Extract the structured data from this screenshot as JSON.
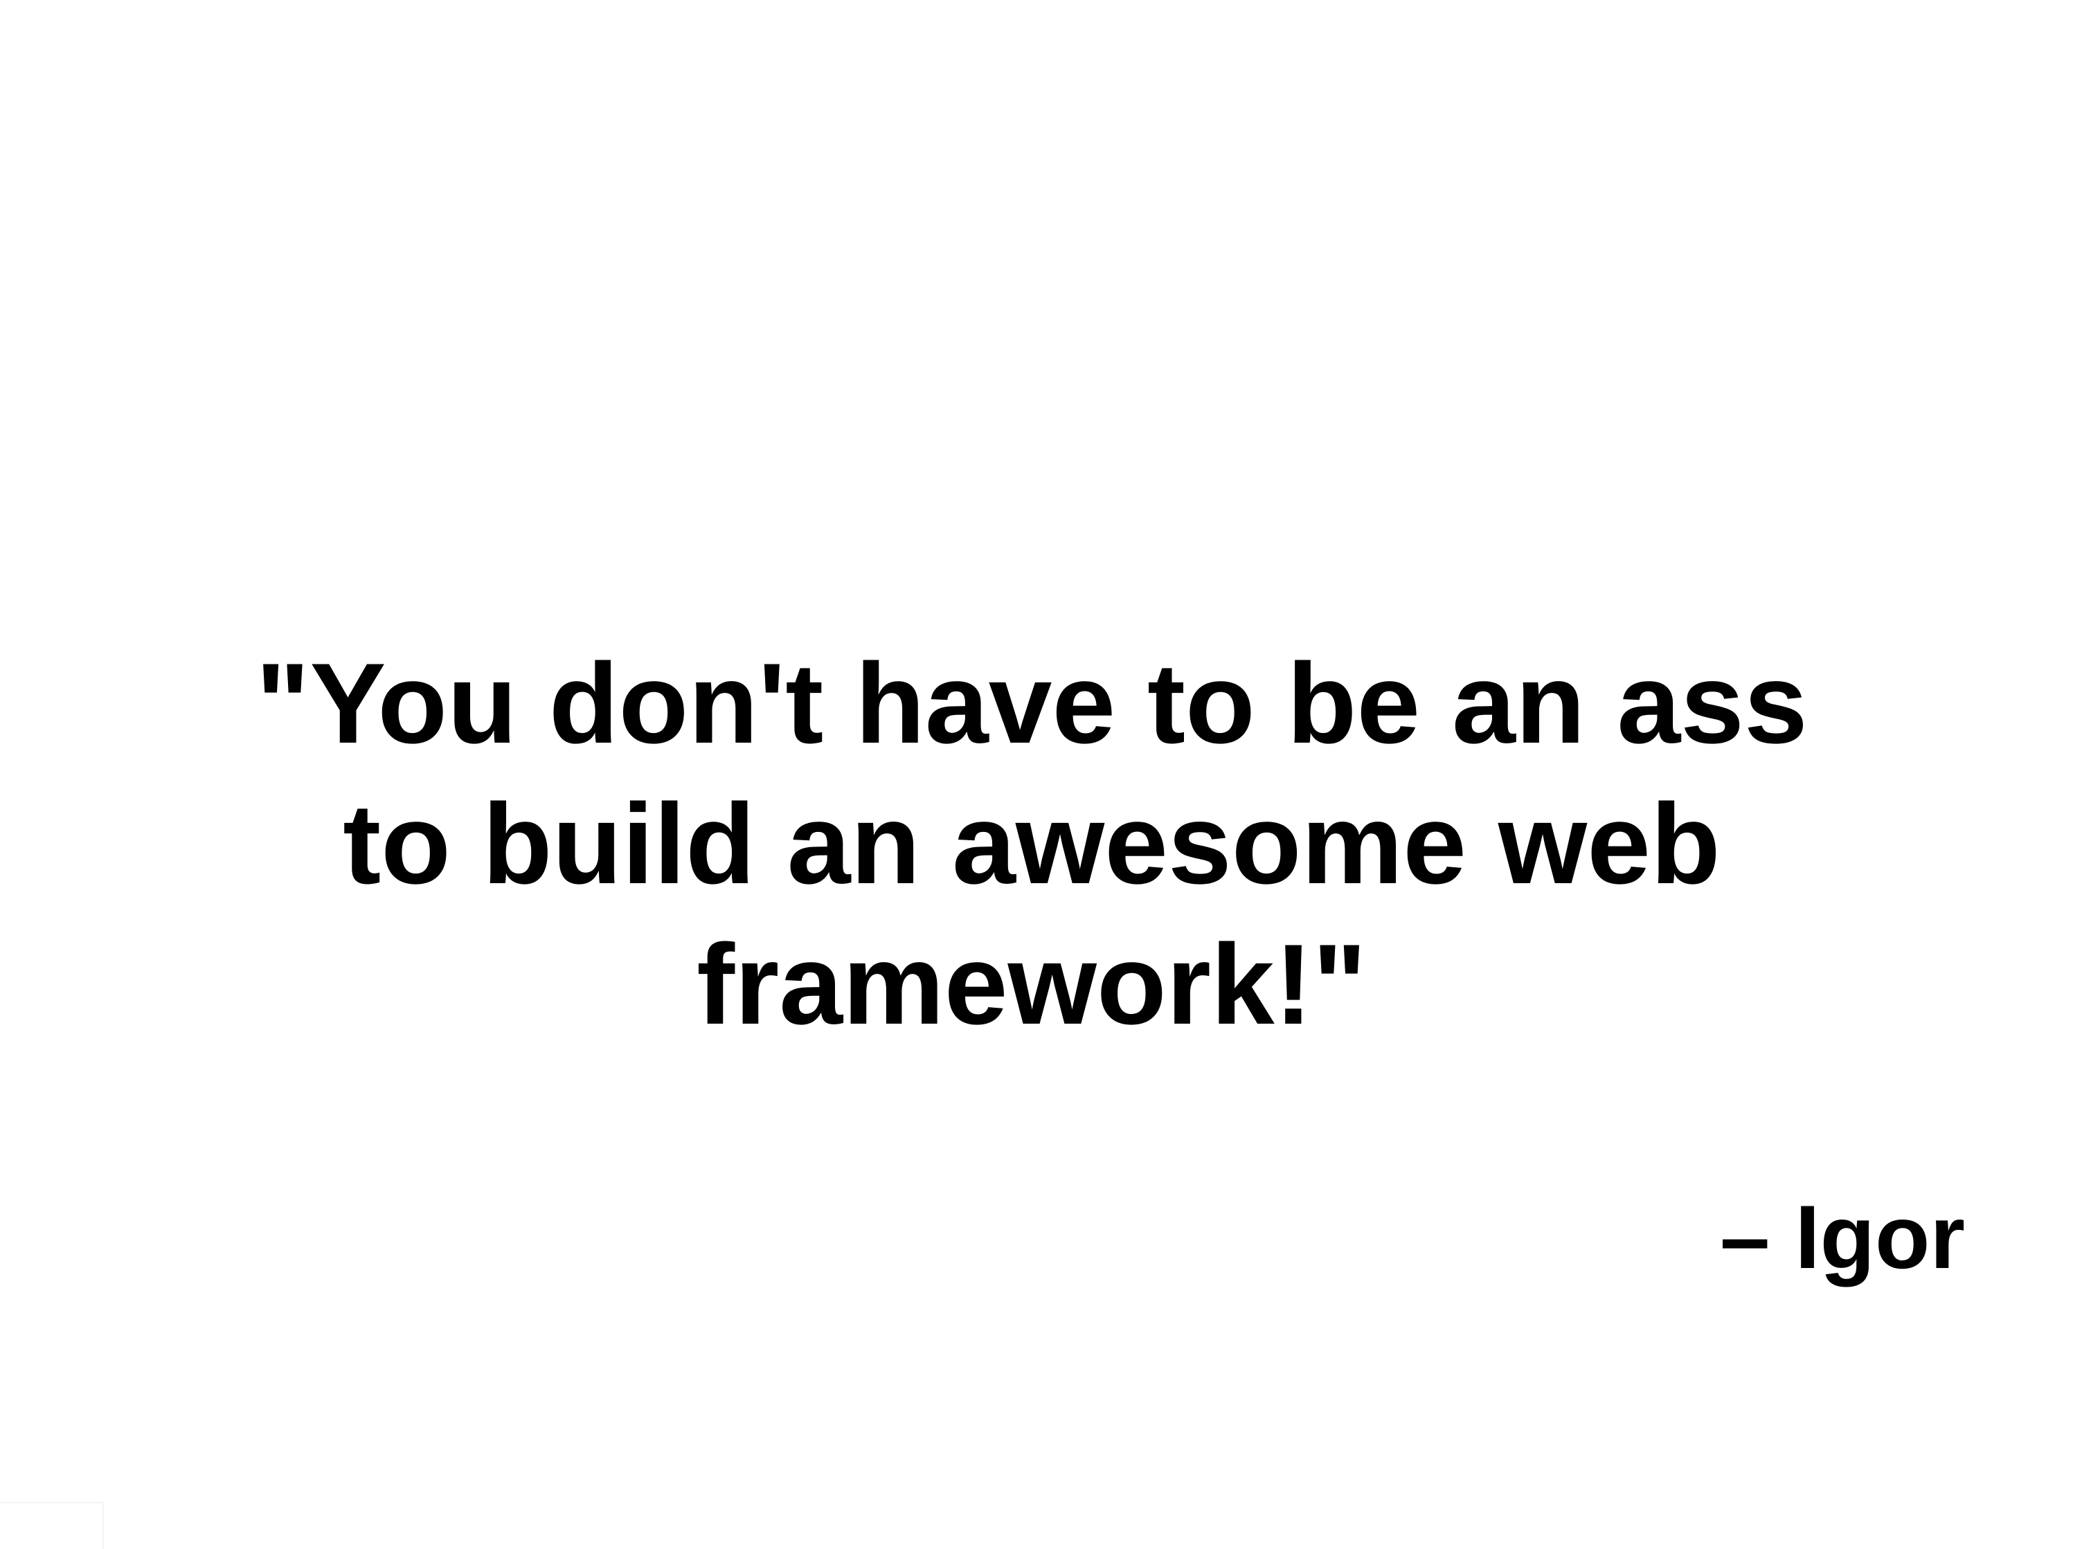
{
  "quote": {
    "lines": [
      "\"You don't have to be an ass",
      "to build an awesome web",
      "framework!\""
    ]
  },
  "attribution": {
    "text": "– Igor"
  }
}
